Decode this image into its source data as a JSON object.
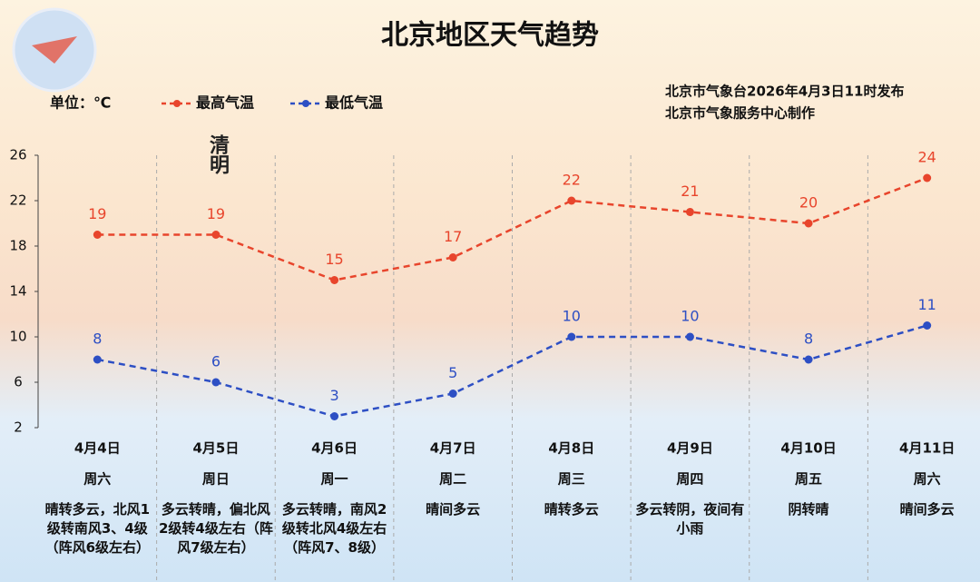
{
  "chart_data": {
    "type": "line",
    "title": "北京地区天气趋势",
    "unit_label": "单位：℃",
    "source_lines": [
      "北京市气象台2026年4月3日11时发布",
      "北京市气象服务中心制作"
    ],
    "annotation": {
      "text": "清明",
      "category_index": 1
    },
    "categories": [
      "4月4日",
      "4月5日",
      "4月6日",
      "4月7日",
      "4月8日",
      "4月9日",
      "4月10日",
      "4月11日"
    ],
    "weekdays": [
      "周六",
      "周日",
      "周一",
      "周二",
      "周三",
      "周四",
      "周五",
      "周六"
    ],
    "weather": [
      "晴转多云，北风1级转南风3、4级（阵风6级左右）",
      "多云转晴，偏北风2级转4级左右（阵风7级左右）",
      "多云转晴，南风2级转北风4级左右（阵风7、8级）",
      "晴间多云",
      "晴转多云",
      "多云转阴，夜间有小雨",
      "阴转晴",
      "晴间多云"
    ],
    "series": [
      {
        "name": "最高气温",
        "color": "#e8452c",
        "values": [
          19,
          19,
          15,
          17,
          22,
          21,
          20,
          24
        ]
      },
      {
        "name": "最低气温",
        "color": "#2d4fc4",
        "values": [
          8,
          6,
          3,
          5,
          10,
          10,
          8,
          11
        ]
      }
    ],
    "ylim": [
      2,
      26
    ],
    "yticks": [
      2,
      6,
      10,
      14,
      18,
      22,
      26
    ],
    "grid": false
  }
}
